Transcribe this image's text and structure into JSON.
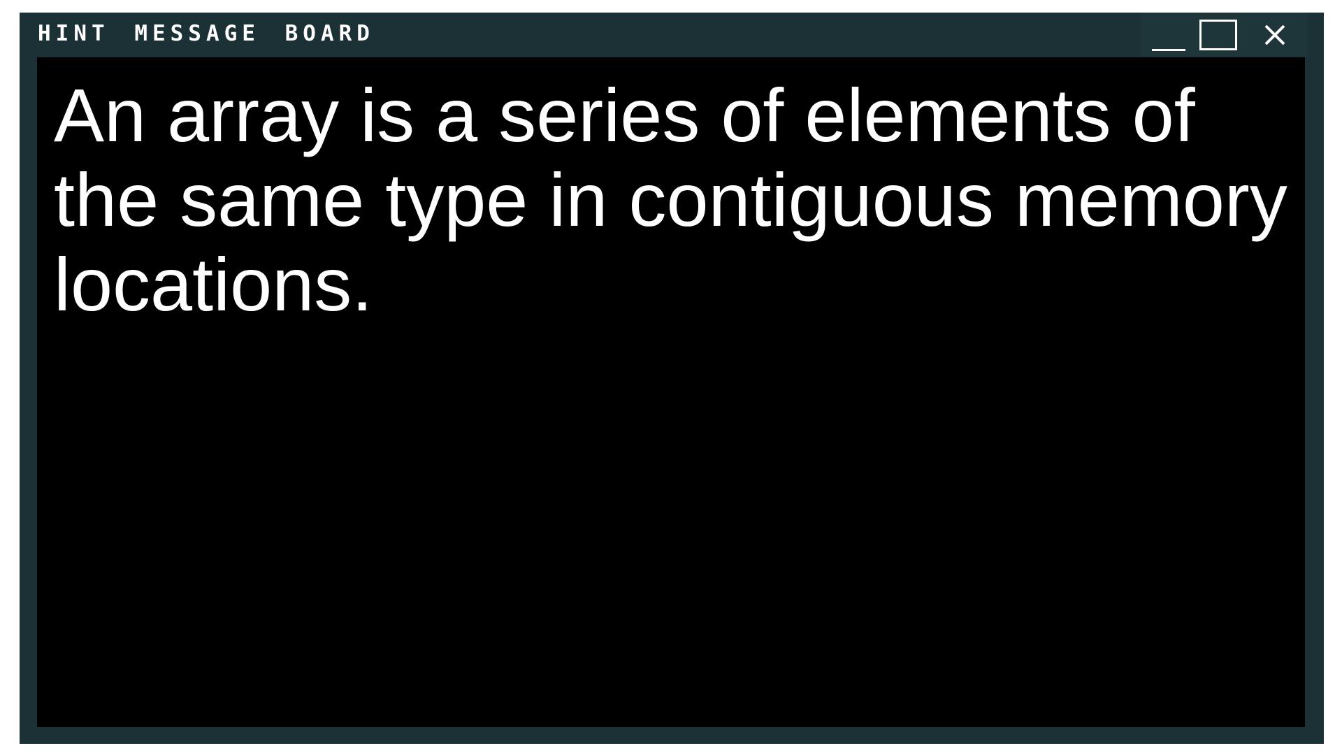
{
  "window": {
    "title": "Hint Message Board",
    "controls": {
      "minimize_icon": "minimize-icon",
      "maximize_icon": "maximize-icon",
      "close_icon": "close-icon"
    }
  },
  "hint": {
    "message": "An array is a series of elements of the same type in contiguous memory locations."
  },
  "colors": {
    "frame": "#1b3135",
    "content_background": "#000000",
    "text": "#ffffff"
  }
}
